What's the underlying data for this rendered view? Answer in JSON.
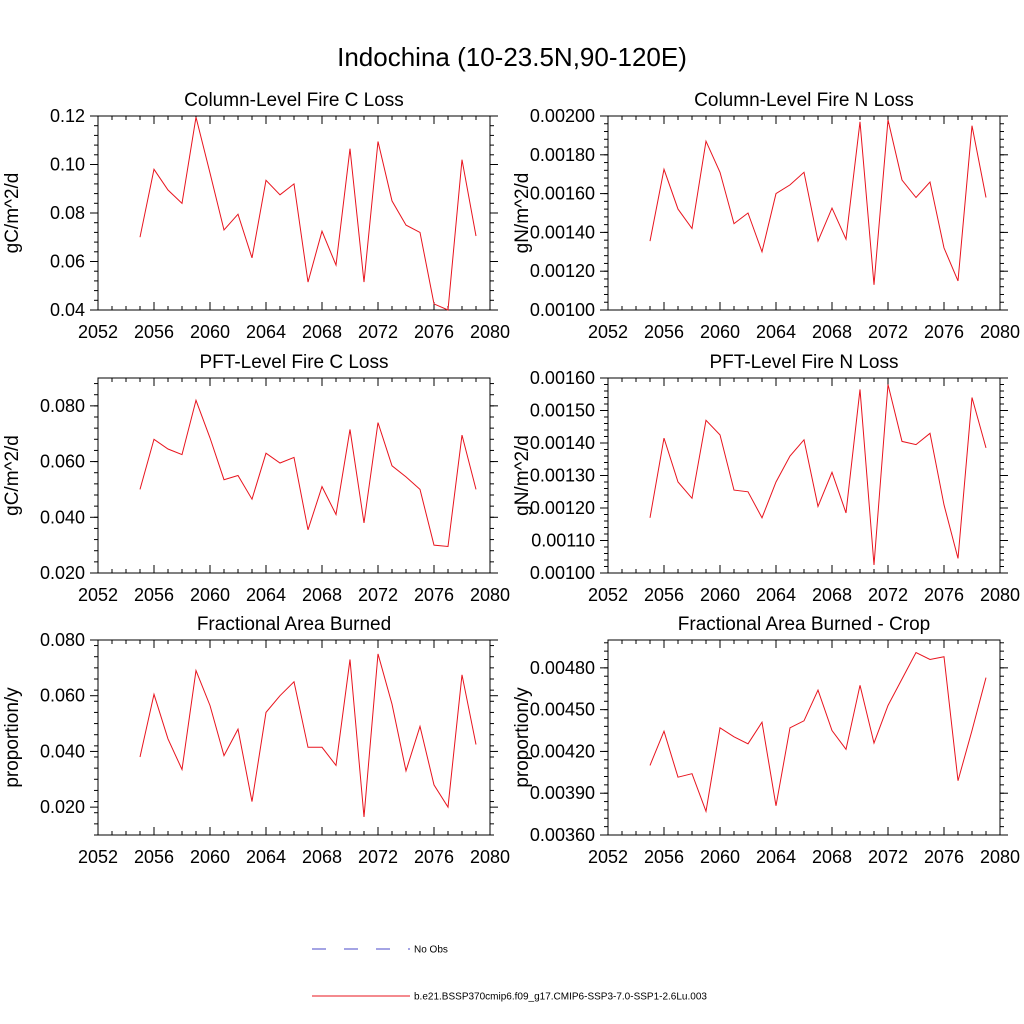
{
  "main_title": "Indochina (10-23.5N,90-120E)",
  "legend": {
    "position": "bottom-center",
    "items": [
      {
        "label": "No Obs",
        "color": "#4a4ac8",
        "dash": true
      },
      {
        "label": "b.e21.BSSP370cmip6.f09_g17.CMIP6-SSP3-7.0-SSP1-2.6Lu.003",
        "color": "#e8141e",
        "dash": false
      }
    ]
  },
  "chart_data": [
    {
      "type": "line",
      "title": "Column-Level Fire C Loss",
      "ylabel": "gC/m^2/d",
      "xlim": [
        2052,
        2080
      ],
      "ylim": [
        0.04,
        0.12
      ],
      "xticks": [
        "2052",
        "2056",
        "2060",
        "2064",
        "2068",
        "2072",
        "2076",
        "2080"
      ],
      "yticks": [
        "0.04",
        "0.06",
        "0.08",
        "0.10",
        "0.12"
      ],
      "x": [
        2055,
        2056,
        2057,
        2058,
        2059,
        2060,
        2061,
        2062,
        2063,
        2064,
        2065,
        2066,
        2067,
        2068,
        2069,
        2070,
        2071,
        2072,
        2073,
        2074,
        2075,
        2076,
        2077,
        2078,
        2079
      ],
      "series": [
        {
          "color": "#e8141e",
          "values": [
            0.07,
            0.098,
            0.0895,
            0.084,
            0.1195,
            0.0965,
            0.073,
            0.0795,
            0.0615,
            0.0935,
            0.0875,
            0.092,
            0.0515,
            0.0725,
            0.0585,
            0.1065,
            0.0515,
            0.1095,
            0.085,
            0.075,
            0.072,
            0.0425,
            0.04,
            0.102,
            0.0705
          ]
        }
      ]
    },
    {
      "type": "line",
      "title": "Column-Level Fire N Loss",
      "ylabel": "gN/m^2/d",
      "xlim": [
        2052,
        2080
      ],
      "ylim": [
        0.001,
        0.002
      ],
      "xticks": [
        "2052",
        "2056",
        "2060",
        "2064",
        "2068",
        "2072",
        "2076",
        "2080"
      ],
      "yticks": [
        "0.00100",
        "0.00120",
        "0.00140",
        "0.00160",
        "0.00180",
        "0.00200"
      ],
      "x": [
        2055,
        2056,
        2057,
        2058,
        2059,
        2060,
        2061,
        2062,
        2063,
        2064,
        2065,
        2066,
        2067,
        2068,
        2069,
        2070,
        2071,
        2072,
        2073,
        2074,
        2075,
        2076,
        2077,
        2078,
        2079
      ],
      "series": [
        {
          "color": "#e8141e",
          "values": [
            0.001355,
            0.001725,
            0.00152,
            0.00142,
            0.00187,
            0.00171,
            0.001445,
            0.0015,
            0.0013,
            0.0016,
            0.001645,
            0.00171,
            0.001355,
            0.001525,
            0.001365,
            0.00197,
            0.00113,
            0.00198,
            0.00167,
            0.00158,
            0.00166,
            0.00132,
            0.00115,
            0.00195,
            0.00158
          ]
        }
      ]
    },
    {
      "type": "line",
      "title": "PFT-Level Fire C Loss",
      "ylabel": "gC/m^2/d",
      "xlim": [
        2052,
        2080
      ],
      "ylim": [
        0.02,
        0.09
      ],
      "xticks": [
        "2052",
        "2056",
        "2060",
        "2064",
        "2068",
        "2072",
        "2076",
        "2080"
      ],
      "yticks": [
        "0.020",
        "0.040",
        "0.060",
        "0.080"
      ],
      "x": [
        2055,
        2056,
        2057,
        2058,
        2059,
        2060,
        2061,
        2062,
        2063,
        2064,
        2065,
        2066,
        2067,
        2068,
        2069,
        2070,
        2071,
        2072,
        2073,
        2074,
        2075,
        2076,
        2077,
        2078,
        2079
      ],
      "series": [
        {
          "color": "#e8141e",
          "values": [
            0.05,
            0.068,
            0.0645,
            0.0625,
            0.082,
            0.0685,
            0.0535,
            0.055,
            0.0465,
            0.063,
            0.0595,
            0.0615,
            0.0355,
            0.051,
            0.041,
            0.0715,
            0.038,
            0.074,
            0.0585,
            0.0545,
            0.05,
            0.03,
            0.0295,
            0.0695,
            0.05
          ]
        }
      ]
    },
    {
      "type": "line",
      "title": "PFT-Level Fire N Loss",
      "ylabel": "gN/m^2/d",
      "xlim": [
        2052,
        2080
      ],
      "ylim": [
        0.001,
        0.0016
      ],
      "xticks": [
        "2052",
        "2056",
        "2060",
        "2064",
        "2068",
        "2072",
        "2076",
        "2080"
      ],
      "yticks": [
        "0.00100",
        "0.00110",
        "0.00120",
        "0.00130",
        "0.00140",
        "0.00150",
        "0.00160"
      ],
      "x": [
        2055,
        2056,
        2057,
        2058,
        2059,
        2060,
        2061,
        2062,
        2063,
        2064,
        2065,
        2066,
        2067,
        2068,
        2069,
        2070,
        2071,
        2072,
        2073,
        2074,
        2075,
        2076,
        2077,
        2078,
        2079
      ],
      "series": [
        {
          "color": "#e8141e",
          "values": [
            0.00117,
            0.001415,
            0.00128,
            0.00123,
            0.00147,
            0.001425,
            0.001255,
            0.00125,
            0.00117,
            0.00128,
            0.00136,
            0.00141,
            0.001205,
            0.00131,
            0.001185,
            0.001565,
            0.001025,
            0.00158,
            0.001405,
            0.001395,
            0.00143,
            0.00121,
            0.001045,
            0.00154,
            0.001385
          ]
        }
      ]
    },
    {
      "type": "line",
      "title": "Fractional Area Burned",
      "ylabel": "proportion/y",
      "xlim": [
        2052,
        2080
      ],
      "ylim": [
        0.01,
        0.08
      ],
      "xticks": [
        "2052",
        "2056",
        "2060",
        "2064",
        "2068",
        "2072",
        "2076",
        "2080"
      ],
      "yticks": [
        "0.020",
        "0.040",
        "0.060",
        "0.080"
      ],
      "x": [
        2055,
        2056,
        2057,
        2058,
        2059,
        2060,
        2061,
        2062,
        2063,
        2064,
        2065,
        2066,
        2067,
        2068,
        2069,
        2070,
        2071,
        2072,
        2073,
        2074,
        2075,
        2076,
        2077,
        2078,
        2079
      ],
      "series": [
        {
          "color": "#e8141e",
          "values": [
            0.038,
            0.0605,
            0.0445,
            0.0335,
            0.069,
            0.0565,
            0.0385,
            0.048,
            0.022,
            0.054,
            0.06,
            0.065,
            0.0415,
            0.0415,
            0.035,
            0.073,
            0.0165,
            0.075,
            0.057,
            0.033,
            0.049,
            0.028,
            0.02,
            0.0675,
            0.0425
          ]
        }
      ]
    },
    {
      "type": "line",
      "title": "Fractional Area Burned - Crop",
      "ylabel": "proportion/y",
      "xlim": [
        2052,
        2080
      ],
      "ylim": [
        0.0036,
        0.005
      ],
      "xticks": [
        "2052",
        "2056",
        "2060",
        "2064",
        "2068",
        "2072",
        "2076",
        "2080"
      ],
      "yticks": [
        "0.00360",
        "0.00390",
        "0.00420",
        "0.00450",
        "0.00480"
      ],
      "x": [
        2055,
        2056,
        2057,
        2058,
        2059,
        2060,
        2061,
        2062,
        2063,
        2064,
        2065,
        2066,
        2067,
        2068,
        2069,
        2070,
        2071,
        2072,
        2073,
        2074,
        2075,
        2076,
        2077,
        2078,
        2079
      ],
      "series": [
        {
          "color": "#e8141e",
          "values": [
            0.0041,
            0.004345,
            0.004015,
            0.00404,
            0.00377,
            0.00437,
            0.004305,
            0.004255,
            0.00441,
            0.00381,
            0.00437,
            0.00442,
            0.00464,
            0.00435,
            0.004215,
            0.004675,
            0.00426,
            0.00453,
            0.00472,
            0.00491,
            0.00486,
            0.00488,
            0.00399,
            0.00435,
            0.00473
          ]
        }
      ]
    }
  ]
}
